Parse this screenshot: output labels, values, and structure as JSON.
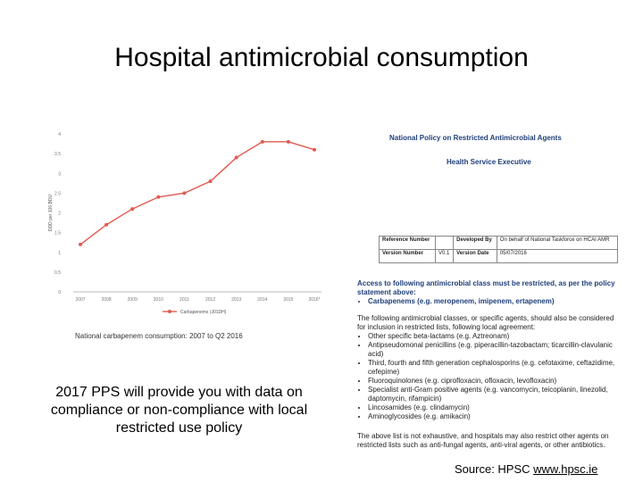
{
  "slide": {
    "title": "Hospital antimicrobial consumption",
    "pps_text": "2017 PPS will provide you with data on compliance or non-compliance with local restricted use policy",
    "source_label": "Source: HPSC ",
    "source_link": "www.hpsc.ie"
  },
  "chart_data": {
    "type": "line",
    "title": "",
    "caption": "National carbapenem consumption: 2007 to Q2 2016",
    "xlabel": "",
    "ylabel": "DDD per 100 BDU",
    "categories": [
      "2007",
      "2008",
      "2009",
      "2010",
      "2011",
      "2012",
      "2013",
      "2014",
      "2015",
      "2016*"
    ],
    "series": [
      {
        "name": "Carbapenems (J01DH)",
        "values": [
          1.2,
          1.7,
          2.1,
          2.4,
          2.5,
          2.8,
          3.4,
          3.8,
          3.8,
          3.6
        ],
        "color": "#e05a4f"
      }
    ],
    "ylim": [
      0,
      4
    ],
    "yticks": [
      "0",
      "0.5",
      "1",
      "1.5",
      "2",
      "2.5",
      "3",
      "3.5",
      "4"
    ],
    "grid": false,
    "legend_position": "bottom"
  },
  "policy": {
    "heading": "National Policy on Restricted Antimicrobial Agents",
    "subheading": "Health Service Executive",
    "table": {
      "ref_label": "Reference Number",
      "developed_label": "Developed By",
      "developed_value": "On behalf of National Taskforce on HCAI AMR",
      "version_label": "Version Number",
      "version_value": "V0.1",
      "date_label": "Version Date",
      "date_value": "05/07/2016"
    },
    "access_text": "Access to following antimicrobial class must be restricted, as per the policy statement above:",
    "restricted": [
      "Carbapenems (e.g. meropenem, imipenem, ertapenem)"
    ],
    "following_text": "The following antimicrobial classes, or specific agents, should also be considered for inclusion in restricted lists, following local agreement:",
    "considered": [
      "Other specific beta-lactams (e.g. Aztreonam)",
      "Antipseudomonal penicillins (e.g. piperacillin-tazobactam; ticarcillin-clavulanic acid)",
      "Third, fourth and fifth generation cephalosporins (e.g. cefotaxime, ceftazidime, cefepime)",
      "Fluoroquinolones (e.g. ciprofloxacin, ofloxacin, levofloxacin)",
      "Specialist anti-Gram positive agents (e.g. vancomycin, teicoplanin, linezolid, daptomycin, rifampicin)",
      "Lincosamides (e.g. clindamycin)",
      "Aminoglycosides (e.g. amikacin)"
    ],
    "above_text": "The above list is not exhaustive, and hospitals may also restrict other agents on restricted lists such as anti-fungal agents, anti-viral agents, or other antibiotics."
  }
}
